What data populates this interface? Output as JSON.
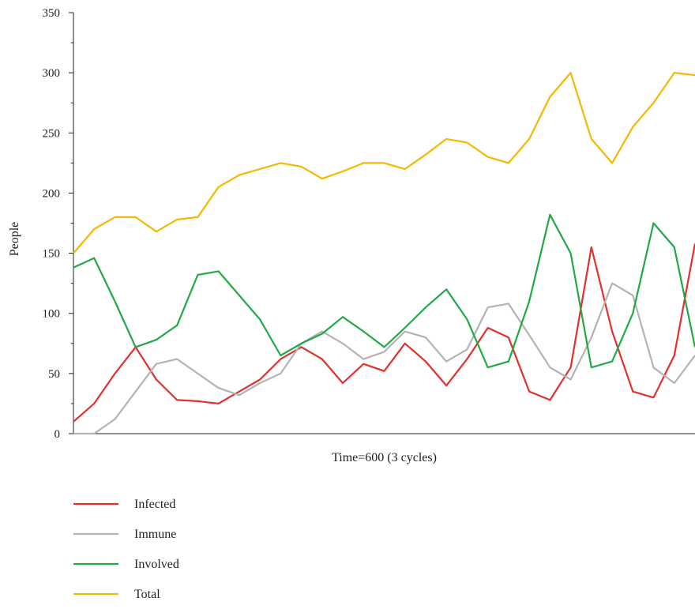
{
  "chart_data": {
    "type": "line",
    "title": "",
    "xlabel": "Time=600 (3 cycles)",
    "ylabel": "People",
    "xlim": [
      0,
      600
    ],
    "ylim": [
      0,
      350
    ],
    "yticks": [
      0,
      50,
      100,
      150,
      200,
      250,
      300,
      350
    ],
    "grid": false,
    "legend_position": "bottom-left",
    "x": [
      0,
      20,
      40,
      60,
      80,
      100,
      120,
      140,
      160,
      180,
      200,
      220,
      240,
      260,
      280,
      300,
      320,
      340,
      360,
      380,
      400,
      420,
      440,
      460,
      480,
      500,
      520,
      540,
      560,
      580,
      600
    ],
    "series": [
      {
        "name": "Infected",
        "color": "#e03030",
        "values": [
          10,
          25,
          50,
          72,
          45,
          28,
          27,
          25,
          35,
          45,
          62,
          72,
          62,
          42,
          58,
          52,
          75,
          60,
          40,
          62,
          88,
          80,
          35,
          28,
          55,
          155,
          85,
          35,
          30,
          65,
          158
        ]
      },
      {
        "name": "Immune",
        "color": "#b3b3b3",
        "values": [
          0,
          0,
          12,
          35,
          58,
          62,
          50,
          38,
          32,
          42,
          50,
          75,
          85,
          75,
          62,
          68,
          85,
          80,
          60,
          70,
          105,
          108,
          82,
          55,
          45,
          80,
          125,
          115,
          55,
          42,
          65
        ]
      },
      {
        "name": "Involved",
        "color": "#22a847",
        "values": [
          138,
          146,
          110,
          72,
          78,
          90,
          132,
          135,
          115,
          95,
          65,
          75,
          83,
          97,
          85,
          72,
          88,
          105,
          120,
          95,
          55,
          60,
          110,
          182,
          150,
          55,
          60,
          100,
          175,
          155,
          72
        ]
      },
      {
        "name": "Total",
        "color": "#f5b800",
        "values": [
          150,
          170,
          180,
          180,
          168,
          178,
          180,
          205,
          215,
          220,
          225,
          222,
          212,
          218,
          225,
          225,
          220,
          232,
          245,
          242,
          230,
          225,
          245,
          280,
          300,
          245,
          225,
          255,
          275,
          300,
          298
        ]
      }
    ]
  }
}
